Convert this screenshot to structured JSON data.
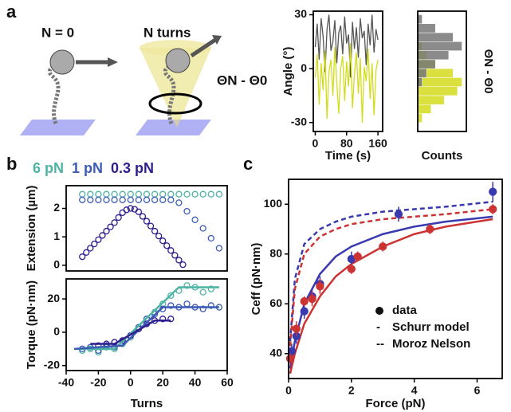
{
  "panel_labels": [
    "a",
    "b",
    "c"
  ],
  "illustration": {
    "left_label": "N = 0",
    "right_label": "N turns",
    "angle_label": "ΘN - Θ0"
  },
  "chart_data": [
    {
      "type": "line",
      "ylabel": "Angle (°)",
      "xlabel": "Time (s)",
      "xlim": [
        -5,
        172
      ],
      "xticks": [
        0,
        80,
        160
      ],
      "ylim": [
        -35,
        32
      ],
      "yticks": [
        30,
        0,
        -30
      ],
      "x": [
        0,
        5,
        10,
        15,
        20,
        25,
        30,
        35,
        40,
        45,
        50,
        55,
        60,
        65,
        70,
        75,
        80,
        85,
        90,
        95,
        100,
        105,
        110,
        115,
        120,
        125,
        130,
        135,
        140,
        145,
        150,
        155,
        160
      ],
      "series": [
        {
          "color": "#555555",
          "values": [
            12,
            25,
            5,
            28,
            18,
            -2,
            22,
            30,
            10,
            15,
            27,
            3,
            20,
            24,
            8,
            29,
            14,
            19,
            -5,
            26,
            11,
            23,
            6,
            28,
            17,
            21,
            2,
            25,
            13,
            30,
            9,
            22,
            16
          ]
        },
        {
          "color": "#d4dc1e",
          "values": [
            -5,
            8,
            -20,
            3,
            -12,
            10,
            -28,
            -2,
            5,
            -15,
            12,
            -8,
            -25,
            0,
            7,
            -18,
            4,
            -10,
            14,
            -22,
            -3,
            9,
            -14,
            6,
            -30,
            1,
            -7,
            11,
            -17,
            3,
            -26,
            -1,
            5
          ]
        }
      ]
    },
    {
      "type": "histogram",
      "xlabel": "Counts",
      "ylabel": "ΘN - Θ0",
      "xlim": [
        0,
        11
      ],
      "ylim": [
        -35,
        32
      ],
      "bins": [
        -30,
        -25,
        -20,
        -15,
        -10,
        -5,
        0,
        5,
        10,
        15,
        20,
        25,
        30
      ],
      "series": [
        {
          "color": "#d4dc1e",
          "values": [
            1,
            3,
            6,
            9,
            10,
            8,
            4,
            2,
            1,
            0,
            0,
            0
          ]
        },
        {
          "color": "#777777",
          "values": [
            0,
            0,
            0,
            0,
            1,
            2,
            4,
            7,
            10,
            8,
            4,
            1
          ]
        }
      ]
    },
    {
      "type": "scatter",
      "ylabel": "Extension (µm)",
      "xlim": [
        -40,
        60
      ],
      "ylim": [
        -0.2,
        2.8
      ],
      "yticks": [
        0,
        1,
        2
      ],
      "series": [
        {
          "name": "6 pN",
          "color": "#4db3a4",
          "x": [
            -30,
            -25,
            -20,
            -15,
            -10,
            -5,
            0,
            5,
            10,
            15,
            20,
            25,
            30,
            35,
            40,
            45,
            50,
            55
          ],
          "values": [
            2.5,
            2.5,
            2.5,
            2.5,
            2.5,
            2.5,
            2.5,
            2.5,
            2.5,
            2.5,
            2.5,
            2.5,
            2.5,
            2.5,
            2.5,
            2.5,
            2.5,
            2.5
          ]
        },
        {
          "name": "1 pN",
          "color": "#3c5bb5",
          "x": [
            -30,
            -25,
            -20,
            -15,
            -10,
            -5,
            0,
            5,
            10,
            15,
            20,
            25,
            30,
            35,
            40,
            45,
            50,
            55
          ],
          "values": [
            2.3,
            2.3,
            2.3,
            2.3,
            2.3,
            2.3,
            2.3,
            2.3,
            2.3,
            2.3,
            2.3,
            2.3,
            2.2,
            1.9,
            1.6,
            1.3,
            0.95,
            0.6
          ]
        },
        {
          "name": "0.3 pN",
          "color": "#2e1e8f",
          "x": [
            -30,
            -27.5,
            -25,
            -22.5,
            -20,
            -17.5,
            -15,
            -12.5,
            -10,
            -7.5,
            -5,
            -2.5,
            0,
            2.5,
            5,
            7.5,
            10,
            12.5,
            15,
            17.5,
            20,
            22.5,
            25,
            27.5,
            30,
            32.5
          ],
          "values": [
            0.3,
            0.45,
            0.6,
            0.75,
            0.9,
            1.05,
            1.2,
            1.35,
            1.5,
            1.68,
            1.85,
            1.95,
            2.0,
            1.97,
            1.88,
            1.72,
            1.55,
            1.38,
            1.2,
            1.03,
            0.86,
            0.69,
            0.52,
            0.35,
            0.18,
            0.02
          ]
        }
      ]
    },
    {
      "type": "scatter",
      "ylabel": "Torque (pN·nm)",
      "xlabel": "Turns",
      "xlim": [
        -40,
        60
      ],
      "xticks": [
        -40,
        -20,
        0,
        20,
        40,
        60
      ],
      "ylim": [
        -23,
        32
      ],
      "yticks": [
        -20,
        0,
        20
      ],
      "series": [
        {
          "color": "#4db3a4",
          "x": [
            -30,
            -25,
            -20,
            -15,
            -10,
            -5,
            0,
            5,
            10,
            15,
            20,
            25,
            30,
            35,
            40,
            45,
            50
          ],
          "values": [
            -11,
            -10,
            -12,
            -9,
            -10,
            -7,
            -3,
            2,
            8,
            12,
            17,
            22,
            25,
            28,
            27,
            24,
            26
          ]
        },
        {
          "color": "#3c5bb5",
          "x": [
            -30,
            -25,
            -20,
            -15,
            -10,
            -5,
            0,
            5,
            10,
            15,
            20,
            25,
            30,
            35,
            40,
            45,
            50,
            55
          ],
          "values": [
            -10,
            -9,
            -11,
            -8,
            -9,
            -5,
            -2,
            3,
            8,
            11,
            14,
            16,
            15,
            17,
            15,
            14,
            16,
            15
          ]
        },
        {
          "color": "#2e1e8f",
          "x": [
            -20,
            -15,
            -10,
            -5,
            0,
            5,
            10,
            15,
            20,
            25
          ],
          "values": [
            -8,
            -7,
            -6,
            -5,
            -2,
            2,
            5,
            7,
            8,
            8
          ]
        },
        {
          "kind": "line",
          "color": "#4db3a4",
          "x": [
            -35,
            -10,
            30,
            55
          ],
          "values": [
            -10,
            -10,
            27,
            27
          ]
        },
        {
          "kind": "line",
          "color": "#3c5bb5",
          "x": [
            -35,
            -5,
            20,
            55
          ],
          "values": [
            -10,
            -8,
            15,
            15
          ]
        },
        {
          "kind": "line",
          "color": "#2e1e8f",
          "x": [
            -25,
            -10,
            15,
            25
          ],
          "values": [
            -7,
            -7,
            7,
            7
          ]
        }
      ]
    },
    {
      "type": "scatter",
      "ylabel": "Ceff (pN·nm)",
      "xlabel": "Force (pN)",
      "xlim": [
        0,
        6.8
      ],
      "xticks": [
        0,
        2,
        4,
        6
      ],
      "ylim": [
        30,
        110
      ],
      "yticks": [
        40,
        60,
        80,
        100
      ],
      "legend": [
        {
          "label": "data"
        },
        {
          "marker": "-",
          "label": "Schurr model"
        },
        {
          "marker": "--",
          "label": "Moroz Nelson"
        }
      ],
      "series": [
        {
          "kind": "line",
          "color": "#3a3ab0",
          "x": [
            0.05,
            0.2,
            0.5,
            1,
            1.5,
            2,
            3,
            4,
            5,
            6.5
          ],
          "values": [
            34,
            45,
            60,
            72,
            79,
            83,
            88,
            91,
            93,
            95
          ]
        },
        {
          "kind": "line",
          "color": "#cc3333",
          "x": [
            0.05,
            0.2,
            0.5,
            1,
            1.5,
            2,
            3,
            4,
            5,
            6.5
          ],
          "values": [
            32,
            40,
            52,
            63,
            71,
            76,
            83,
            88,
            91,
            94
          ]
        },
        {
          "kind": "dashed",
          "color": "#3a3ab0",
          "x": [
            0.05,
            0.2,
            0.5,
            1,
            1.5,
            2,
            3,
            4,
            5,
            6.5
          ],
          "values": [
            45,
            70,
            84,
            90,
            93,
            95,
            97,
            98,
            99,
            101
          ]
        },
        {
          "kind": "dashed",
          "color": "#cc3333",
          "x": [
            0.05,
            0.2,
            0.5,
            1,
            1.5,
            2,
            3,
            4,
            5,
            6.5
          ],
          "values": [
            43,
            66,
            80,
            87,
            90,
            92,
            94,
            95,
            96,
            98
          ]
        },
        {
          "filled": true,
          "color": "#3a3ab0",
          "x": [
            0.1,
            0.25,
            0.5,
            0.75,
            1,
            2,
            3.5,
            6.5
          ],
          "values": [
            41,
            47,
            57,
            63,
            68,
            78,
            96,
            105
          ],
          "errors": [
            3,
            3,
            3,
            3,
            3,
            3,
            3,
            4
          ]
        },
        {
          "filled": true,
          "color": "#cc3333",
          "x": [
            0.05,
            0.25,
            0.5,
            0.75,
            1,
            2,
            2.2,
            3,
            4.5,
            6.5
          ],
          "values": [
            38,
            50,
            61,
            62,
            67,
            74,
            79,
            83,
            90,
            98
          ],
          "errors": [
            2,
            3,
            2,
            3,
            3,
            2,
            2,
            2,
            2,
            2
          ]
        }
      ]
    }
  ]
}
